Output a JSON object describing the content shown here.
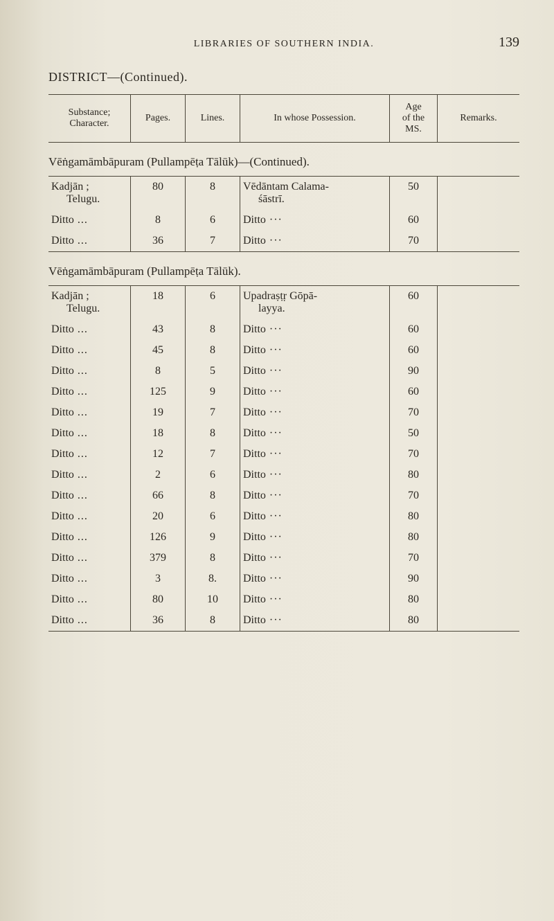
{
  "page_number": "139",
  "running_title": "LIBRARIES OF SOUTHERN INDIA.",
  "district_line": "DISTRICT—(Continued).",
  "header": {
    "substance": "Substance;\nCharacter.",
    "pages": "Pages.",
    "lines": "Lines.",
    "possession": "In whose Possession.",
    "age": "Age\nof the\nMS.",
    "remarks": "Remarks."
  },
  "section1": {
    "title": "Vēṅgamāmbāpuram (Pullampēṭa Tālūk)—(Continued).",
    "rows": [
      {
        "sub": "Kadjān ;",
        "subline2": "Telugu.",
        "pages": "80",
        "lines": "8",
        "poss": "Vēdāntam Calama-",
        "possline2": "śāstrī.",
        "age": "50"
      },
      {
        "sub": "Ditto",
        "pages": "8",
        "lines": "6",
        "poss": "Ditto",
        "age": "60"
      },
      {
        "sub": "Ditto",
        "pages": "36",
        "lines": "7",
        "poss": "Ditto",
        "age": "70"
      }
    ]
  },
  "section2": {
    "title": "Vēṅgamāmbāpuram (Pullampēṭa Tālūk).",
    "rows": [
      {
        "sub": "Kadjān ;",
        "subline2": "Telugu.",
        "pages": "18",
        "lines": "6",
        "poss": "Upadraṣṭṛ Gōpā-",
        "possline2": "layya.",
        "age": "60"
      },
      {
        "sub": "Ditto",
        "pages": "43",
        "lines": "8",
        "poss": "Ditto",
        "age": "60"
      },
      {
        "sub": "Ditto",
        "pages": "45",
        "lines": "8",
        "poss": "Ditto",
        "age": "60"
      },
      {
        "sub": "Ditto",
        "pages": "8",
        "lines": "5",
        "poss": "Ditto",
        "age": "90"
      },
      {
        "sub": "Ditto",
        "pages": "125",
        "lines": "9",
        "poss": "Ditto",
        "age": "60",
        "gap": true
      },
      {
        "sub": "Ditto",
        "pages": "19",
        "lines": "7",
        "poss": "Ditto",
        "age": "70"
      },
      {
        "sub": "Ditto",
        "pages": "18",
        "lines": "8",
        "poss": "Ditto",
        "age": "50"
      },
      {
        "sub": "Ditto",
        "pages": "12",
        "lines": "7",
        "poss": "Ditto",
        "age": "70"
      },
      {
        "sub": "Ditto",
        "pages": "2",
        "lines": "6",
        "poss": "Ditto",
        "age": "80",
        "biggap": true
      },
      {
        "sub": "Ditto",
        "pages": "66",
        "lines": "8",
        "poss": "Ditto",
        "age": "70"
      },
      {
        "sub": "Ditto",
        "pages": "20",
        "lines": "6",
        "poss": "Ditto",
        "age": "80"
      },
      {
        "sub": "Ditto",
        "pages": "126",
        "lines": "9",
        "poss": "Ditto",
        "age": "80",
        "gap": true
      },
      {
        "sub": "Ditto",
        "pages": "379",
        "lines": "8",
        "poss": "Ditto",
        "age": "70"
      },
      {
        "sub": "Ditto",
        "pages": "3",
        "lines": "8.",
        "poss": "Ditto",
        "age": "90"
      },
      {
        "sub": "Ditto",
        "pages": "80",
        "lines": "10",
        "poss": "Ditto",
        "age": "80"
      },
      {
        "sub": "Ditto",
        "pages": "36",
        "lines": "8",
        "poss": "Ditto",
        "age": "80"
      }
    ]
  }
}
